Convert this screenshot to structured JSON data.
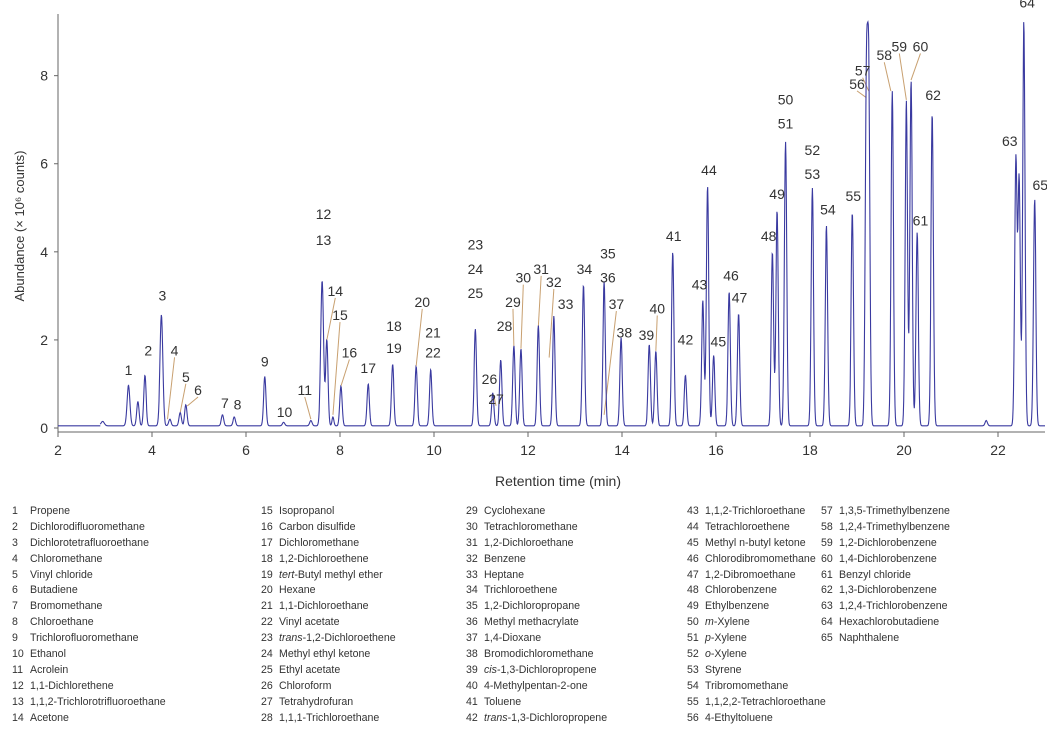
{
  "chart_data": {
    "type": "line",
    "xlabel": "Retention time (min)",
    "ylabel": "Abundance (× 10⁶ counts)",
    "xlim": [
      2,
      23
    ],
    "ylim": [
      0,
      9.4
    ],
    "xticks": [
      "2",
      "4",
      "6",
      "8",
      "10",
      "12",
      "14",
      "16",
      "18",
      "20",
      "22"
    ],
    "yticks": [
      "0",
      "2",
      "4",
      "6",
      "8"
    ],
    "line_color": "#3a3aa0",
    "label_color": "#333333",
    "leader_color": "#c8a070",
    "baseline": 0.05,
    "peaks": [
      {
        "x": 2.95,
        "y": 0.1,
        "w": 0.035
      },
      {
        "x": 3.5,
        "y": 0.92,
        "w": 0.03
      },
      {
        "x": 3.7,
        "y": 0.55,
        "w": 0.025
      },
      {
        "x": 3.85,
        "y": 1.15,
        "w": 0.025
      },
      {
        "x": 4.2,
        "y": 2.52,
        "w": 0.03
      },
      {
        "x": 4.38,
        "y": 0.15,
        "w": 0.025
      },
      {
        "x": 4.6,
        "y": 0.3,
        "w": 0.025
      },
      {
        "x": 4.72,
        "y": 0.48,
        "w": 0.025
      },
      {
        "x": 5.5,
        "y": 0.25,
        "w": 0.025
      },
      {
        "x": 5.75,
        "y": 0.2,
        "w": 0.025
      },
      {
        "x": 6.4,
        "y": 1.12,
        "w": 0.025
      },
      {
        "x": 6.8,
        "y": 0.08,
        "w": 0.025
      },
      {
        "x": 7.38,
        "y": 0.12,
        "w": 0.025
      },
      {
        "x": 7.62,
        "y": 3.3,
        "w": 0.03
      },
      {
        "x": 7.72,
        "y": 1.95,
        "w": 0.025
      },
      {
        "x": 7.85,
        "y": 0.2,
        "w": 0.02
      },
      {
        "x": 8.02,
        "y": 0.9,
        "w": 0.025
      },
      {
        "x": 8.6,
        "y": 0.95,
        "w": 0.025
      },
      {
        "x": 9.12,
        "y": 1.4,
        "w": 0.025
      },
      {
        "x": 9.62,
        "y": 1.35,
        "w": 0.025
      },
      {
        "x": 9.93,
        "y": 1.28,
        "w": 0.025
      },
      {
        "x": 10.88,
        "y": 2.2,
        "w": 0.025
      },
      {
        "x": 11.25,
        "y": 0.75,
        "w": 0.025
      },
      {
        "x": 11.42,
        "y": 1.5,
        "w": 0.025
      },
      {
        "x": 11.7,
        "y": 1.82,
        "w": 0.025
      },
      {
        "x": 11.85,
        "y": 1.75,
        "w": 0.025
      },
      {
        "x": 12.22,
        "y": 2.28,
        "w": 0.025
      },
      {
        "x": 12.55,
        "y": 2.5,
        "w": 0.025
      },
      {
        "x": 13.18,
        "y": 3.2,
        "w": 0.025
      },
      {
        "x": 13.62,
        "y": 3.28,
        "w": 0.025
      },
      {
        "x": 13.98,
        "y": 2.0,
        "w": 0.025
      },
      {
        "x": 14.58,
        "y": 1.85,
        "w": 0.025
      },
      {
        "x": 14.72,
        "y": 1.7,
        "w": 0.025
      },
      {
        "x": 15.08,
        "y": 3.95,
        "w": 0.025
      },
      {
        "x": 15.35,
        "y": 1.15,
        "w": 0.025
      },
      {
        "x": 15.72,
        "y": 2.85,
        "w": 0.025
      },
      {
        "x": 15.82,
        "y": 5.45,
        "w": 0.025
      },
      {
        "x": 15.95,
        "y": 1.6,
        "w": 0.025
      },
      {
        "x": 16.28,
        "y": 3.05,
        "w": 0.025
      },
      {
        "x": 16.48,
        "y": 2.55,
        "w": 0.025
      },
      {
        "x": 17.2,
        "y": 3.95,
        "w": 0.025
      },
      {
        "x": 17.3,
        "y": 4.9,
        "w": 0.025
      },
      {
        "x": 17.48,
        "y": 6.45,
        "w": 0.025
      },
      {
        "x": 18.05,
        "y": 5.4,
        "w": 0.025
      },
      {
        "x": 18.35,
        "y": 4.55,
        "w": 0.025
      },
      {
        "x": 18.9,
        "y": 4.85,
        "w": 0.025
      },
      {
        "x": 19.2,
        "y": 7.5,
        "w": 0.025
      },
      {
        "x": 19.25,
        "y": 7.6,
        "w": 0.025
      },
      {
        "x": 19.75,
        "y": 7.6,
        "w": 0.025
      },
      {
        "x": 20.05,
        "y": 7.4,
        "w": 0.025
      },
      {
        "x": 20.15,
        "y": 7.85,
        "w": 0.025
      },
      {
        "x": 20.28,
        "y": 4.4,
        "w": 0.025
      },
      {
        "x": 20.6,
        "y": 7.1,
        "w": 0.025
      },
      {
        "x": 21.75,
        "y": 0.12,
        "w": 0.025
      },
      {
        "x": 22.38,
        "y": 6.05,
        "w": 0.025
      },
      {
        "x": 22.45,
        "y": 5.6,
        "w": 0.025
      },
      {
        "x": 22.55,
        "y": 9.2,
        "w": 0.025
      },
      {
        "x": 22.78,
        "y": 5.15,
        "w": 0.025
      }
    ],
    "peak_labels": [
      {
        "text": "1",
        "x": 3.5,
        "y": 1.2
      },
      {
        "text": "2",
        "x": 3.92,
        "y": 1.65
      },
      {
        "text": "3",
        "x": 4.22,
        "y": 2.9
      },
      {
        "text": "4",
        "x": 4.48,
        "y": 1.65,
        "lead_x": 4.33,
        "lead_y": 0.2
      },
      {
        "text": "5",
        "x": 4.72,
        "y": 1.05,
        "lead_x": 4.6,
        "lead_y": 0.35
      },
      {
        "text": "6",
        "x": 4.98,
        "y": 0.75,
        "lead_x": 4.75,
        "lead_y": 0.5
      },
      {
        "text": "7",
        "x": 5.55,
        "y": 0.45
      },
      {
        "text": "8",
        "x": 5.82,
        "y": 0.42
      },
      {
        "text": "9",
        "x": 6.4,
        "y": 1.4
      },
      {
        "text": "10",
        "x": 6.82,
        "y": 0.25
      },
      {
        "text": "11",
        "x": 7.25,
        "y": 0.75,
        "lead_x": 7.38,
        "lead_y": 0.2
      },
      {
        "text": "12",
        "x": 7.65,
        "y": 4.75
      },
      {
        "text": "13",
        "x": 7.65,
        "y": 4.15
      },
      {
        "text": "14",
        "x": 7.9,
        "y": 3.0,
        "lead_x": 7.72,
        "lead_y": 2.0
      },
      {
        "text": "15",
        "x": 8.0,
        "y": 2.45,
        "lead_x": 7.85,
        "lead_y": 0.3
      },
      {
        "text": "16",
        "x": 8.2,
        "y": 1.6,
        "lead_x": 8.02,
        "lead_y": 0.95
      },
      {
        "text": "17",
        "x": 8.6,
        "y": 1.25
      },
      {
        "text": "18",
        "x": 9.15,
        "y": 2.2
      },
      {
        "text": "19",
        "x": 9.15,
        "y": 1.7
      },
      {
        "text": "20",
        "x": 9.75,
        "y": 2.75,
        "lead_x": 9.62,
        "lead_y": 1.4
      },
      {
        "text": "21",
        "x": 9.98,
        "y": 2.05
      },
      {
        "text": "22",
        "x": 9.98,
        "y": 1.6
      },
      {
        "text": "23",
        "x": 10.88,
        "y": 4.05
      },
      {
        "text": "24",
        "x": 10.88,
        "y": 3.5
      },
      {
        "text": "25",
        "x": 10.88,
        "y": 2.95
      },
      {
        "text": "26",
        "x": 11.18,
        "y": 1.0
      },
      {
        "text": "27",
        "x": 11.32,
        "y": 0.55,
        "lead_x": 11.27,
        "lead_y": 0.75
      },
      {
        "text": "28",
        "x": 11.5,
        "y": 2.2
      },
      {
        "text": "29",
        "x": 11.68,
        "y": 2.75,
        "lead_x": 11.7,
        "lead_y": 1.85
      },
      {
        "text": "30",
        "x": 11.9,
        "y": 3.3,
        "lead_x": 11.85,
        "lead_y": 1.8
      },
      {
        "text": "31",
        "x": 12.28,
        "y": 3.5,
        "lead_x": 12.22,
        "lead_y": 2.3
      },
      {
        "text": "32",
        "x": 12.55,
        "y": 3.2,
        "lead_x": 12.45,
        "lead_y": 1.6
      },
      {
        "text": "33",
        "x": 12.8,
        "y": 2.7
      },
      {
        "text": "34",
        "x": 13.2,
        "y": 3.5
      },
      {
        "text": "35",
        "x": 13.7,
        "y": 3.85
      },
      {
        "text": "36",
        "x": 13.7,
        "y": 3.3
      },
      {
        "text": "37",
        "x": 13.88,
        "y": 2.7,
        "lead_x": 13.62,
        "lead_y": 0.3
      },
      {
        "text": "38",
        "x": 14.05,
        "y": 2.05
      },
      {
        "text": "39",
        "x": 14.52,
        "y": 2.0
      },
      {
        "text": "40",
        "x": 14.75,
        "y": 2.6,
        "lead_x": 14.72,
        "lead_y": 1.75
      },
      {
        "text": "41",
        "x": 15.1,
        "y": 4.25
      },
      {
        "text": "42",
        "x": 15.35,
        "y": 1.9
      },
      {
        "text": "43",
        "x": 15.65,
        "y": 3.15
      },
      {
        "text": "44",
        "x": 15.85,
        "y": 5.75
      },
      {
        "text": "45",
        "x": 16.05,
        "y": 1.85
      },
      {
        "text": "46",
        "x": 16.32,
        "y": 3.35
      },
      {
        "text": "47",
        "x": 16.5,
        "y": 2.85
      },
      {
        "text": "48",
        "x": 17.12,
        "y": 4.25
      },
      {
        "text": "49",
        "x": 17.3,
        "y": 5.2
      },
      {
        "text": "50",
        "x": 17.48,
        "y": 7.35
      },
      {
        "text": "51",
        "x": 17.48,
        "y": 6.8
      },
      {
        "text": "52",
        "x": 18.05,
        "y": 6.2
      },
      {
        "text": "53",
        "x": 18.05,
        "y": 5.65
      },
      {
        "text": "54",
        "x": 18.38,
        "y": 4.85
      },
      {
        "text": "55",
        "x": 18.92,
        "y": 5.15
      },
      {
        "text": "56",
        "x": 19.0,
        "y": 7.7,
        "lead_x": 19.2,
        "lead_y": 7.5
      },
      {
        "text": "57",
        "x": 19.12,
        "y": 8.0,
        "lead_x": 19.25,
        "lead_y": 7.65
      },
      {
        "text": "58",
        "x": 19.58,
        "y": 8.35,
        "lead_x": 19.72,
        "lead_y": 7.65
      },
      {
        "text": "59",
        "x": 19.9,
        "y": 8.55,
        "lead_x": 20.05,
        "lead_y": 7.45
      },
      {
        "text": "60",
        "x": 20.35,
        "y": 8.55,
        "lead_x": 20.15,
        "lead_y": 7.9
      },
      {
        "text": "61",
        "x": 20.35,
        "y": 4.6
      },
      {
        "text": "62",
        "x": 20.62,
        "y": 7.45
      },
      {
        "text": "63",
        "x": 22.25,
        "y": 6.4
      },
      {
        "text": "64",
        "x": 22.62,
        "y": 9.55
      },
      {
        "text": "65",
        "x": 22.9,
        "y": 5.4
      }
    ],
    "legend": [
      [
        {
          "n": "1",
          "name": "Propene"
        },
        {
          "n": "2",
          "name": "Dichlorodifluoromethane"
        },
        {
          "n": "3",
          "name": "Dichlorotetrafluoroethane"
        },
        {
          "n": "4",
          "name": "Chloromethane"
        },
        {
          "n": "5",
          "name": "Vinyl chloride"
        },
        {
          "n": "6",
          "name": "Butadiene"
        },
        {
          "n": "7",
          "name": "Bromomethane"
        },
        {
          "n": "8",
          "name": "Chloroethane"
        },
        {
          "n": "9",
          "name": "Trichlorofluoromethane"
        },
        {
          "n": "10",
          "name": "Ethanol"
        },
        {
          "n": "11",
          "name": "Acrolein"
        },
        {
          "n": "12",
          "name": "1,1-Dichlorethene"
        },
        {
          "n": "13",
          "name": "1,1,2-Trichlorotrifluoroethane"
        },
        {
          "n": "14",
          "name": "Acetone"
        }
      ],
      [
        {
          "n": "15",
          "name": "Isopropanol"
        },
        {
          "n": "16",
          "name": "Carbon disulfide"
        },
        {
          "n": "17",
          "name": "Dichloromethane"
        },
        {
          "n": "18",
          "name": "1,2-Dichloroethene"
        },
        {
          "n": "19",
          "pre": "tert",
          "name": "-Butyl methyl ether"
        },
        {
          "n": "20",
          "name": "Hexane"
        },
        {
          "n": "21",
          "name": "1,1-Dichloroethane"
        },
        {
          "n": "22",
          "name": "Vinyl acetate"
        },
        {
          "n": "23",
          "pre": "trans",
          "name": "-1,2-Dichloroethene"
        },
        {
          "n": "24",
          "name": "Methyl ethyl ketone"
        },
        {
          "n": "25",
          "name": "Ethyl acetate"
        },
        {
          "n": "26",
          "name": "Chloroform"
        },
        {
          "n": "27",
          "name": "Tetrahydrofuran"
        },
        {
          "n": "28",
          "name": "1,1,1-Trichloroethane"
        }
      ],
      [
        {
          "n": "29",
          "name": "Cyclohexane"
        },
        {
          "n": "30",
          "name": "Tetrachloromethane"
        },
        {
          "n": "31",
          "name": "1,2-Dichloroethane"
        },
        {
          "n": "32",
          "name": "Benzene"
        },
        {
          "n": "33",
          "name": "Heptane"
        },
        {
          "n": "34",
          "name": "Trichloroethene"
        },
        {
          "n": "35",
          "name": "1,2-Dichloropropane"
        },
        {
          "n": "36",
          "name": "Methyl methacrylate"
        },
        {
          "n": "37",
          "name": "1,4-Dioxane"
        },
        {
          "n": "38",
          "name": "Bromodichloromethane"
        },
        {
          "n": "39",
          "pre": "cis",
          "name": "-1,3-Dichloropropene"
        },
        {
          "n": "40",
          "name": "4-Methylpentan-2-one"
        },
        {
          "n": "41",
          "name": "Toluene"
        },
        {
          "n": "42",
          "pre": "trans",
          "name": "-1,3-Dichloropropene"
        }
      ],
      [
        {
          "n": "43",
          "name": "1,1,2-Trichloroethane"
        },
        {
          "n": "44",
          "name": "Tetrachloroethene"
        },
        {
          "n": "45",
          "name": "Methyl n-butyl ketone"
        },
        {
          "n": "46",
          "name": "Chlorodibromomethane"
        },
        {
          "n": "47",
          "name": "1,2-Dibromoethane"
        },
        {
          "n": "48",
          "name": "Chlorobenzene"
        },
        {
          "n": "49",
          "name": "Ethylbenzene"
        },
        {
          "n": "50",
          "pre": "m",
          "name": "-Xylene"
        },
        {
          "n": "51",
          "pre": "p",
          "name": "-Xylene"
        },
        {
          "n": "52",
          "pre": "o",
          "name": "-Xylene"
        },
        {
          "n": "53",
          "name": "Styrene"
        },
        {
          "n": "54",
          "name": "Tribromomethane"
        },
        {
          "n": "55",
          "name": "1,1,2,2-Tetrachloroethane"
        },
        {
          "n": "56",
          "name": "4-Ethyltoluene"
        }
      ],
      [
        {
          "n": "57",
          "name": "1,3,5-Trimethylbenzene"
        },
        {
          "n": "58",
          "name": "1,2,4-Trimethylbenzene"
        },
        {
          "n": "59",
          "name": "1,2-Dichlorobenzene"
        },
        {
          "n": "60",
          "name": "1,4-Dichlorobenzene"
        },
        {
          "n": "61",
          "name": "Benzyl chloride"
        },
        {
          "n": "62",
          "name": "1,3-Dichlorobenzene"
        },
        {
          "n": "63",
          "name": "1,2,4-Trichlorobenzene"
        },
        {
          "n": "64",
          "name": "Hexachlorobutadiene"
        },
        {
          "n": "65",
          "name": "Naphthalene"
        }
      ]
    ]
  }
}
